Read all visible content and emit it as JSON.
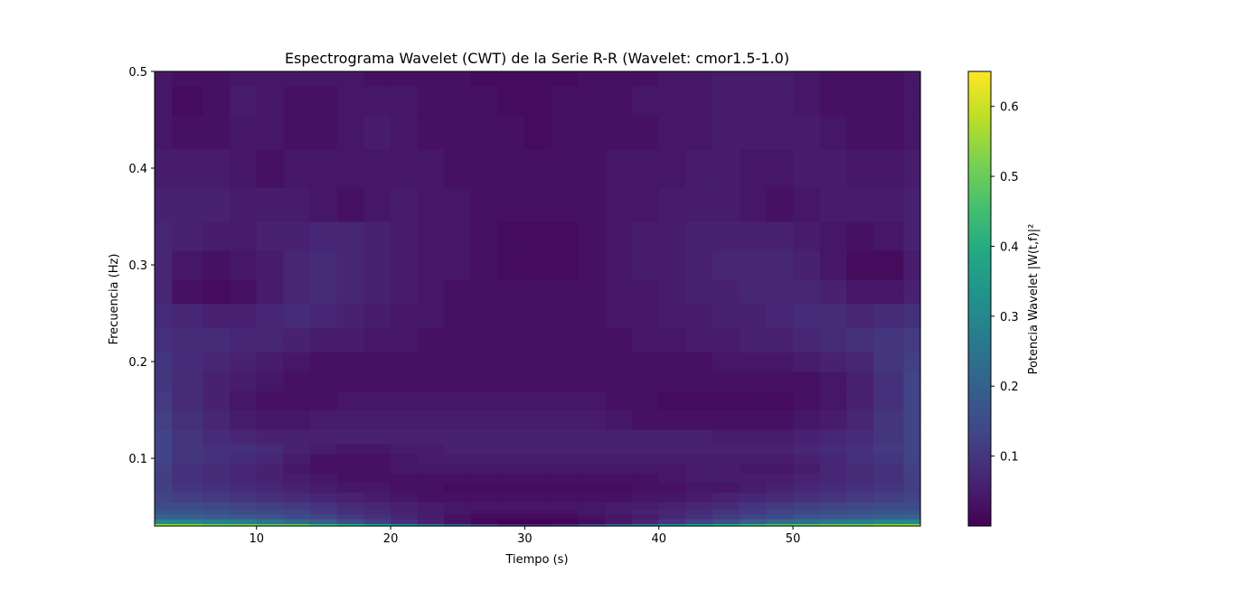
{
  "chart_data": {
    "type": "heatmap",
    "title": "Espectrograma Wavelet (CWT) de la Serie R-R (Wavelet: cmor1.5-1.0)",
    "xlabel": "Tiempo (s)",
    "ylabel": "Frecuencia (Hz)",
    "colorbar_label": "Potencia Wavelet |W(t,f)|²",
    "colormap": "viridis",
    "xlim": [
      2.4,
      59.5
    ],
    "ylim": [
      0.03,
      0.5
    ],
    "x_ticks": [
      10,
      20,
      30,
      40,
      50
    ],
    "y_ticks": [
      0.1,
      0.2,
      0.3,
      0.4,
      0.5
    ],
    "color_range": [
      0.0,
      0.65
    ],
    "color_ticks": [
      0.1,
      0.2,
      0.3,
      0.4,
      0.5,
      0.6
    ],
    "grid": false,
    "power_map": {
      "x": [
        2.4,
        5,
        7,
        9,
        11,
        13,
        15,
        17,
        19,
        21,
        23,
        25,
        27,
        29,
        31,
        33,
        35,
        37,
        39,
        41,
        43,
        45,
        47,
        49,
        51,
        53,
        55,
        57,
        59.5
      ],
      "y": [
        0.03,
        0.035,
        0.04,
        0.045,
        0.05,
        0.06,
        0.07,
        0.08,
        0.09,
        0.1,
        0.11,
        0.12,
        0.14,
        0.16,
        0.18,
        0.2,
        0.22,
        0.25,
        0.27,
        0.3,
        0.33,
        0.36,
        0.4,
        0.44,
        0.47,
        0.5
      ],
      "values": [
        [
          0.55,
          0.55,
          0.52,
          0.52,
          0.5,
          0.5,
          0.45,
          0.42,
          0.38,
          0.33,
          0.28,
          0.22,
          0.16,
          0.11,
          0.09,
          0.12,
          0.17,
          0.22,
          0.28,
          0.33,
          0.38,
          0.42,
          0.45,
          0.48,
          0.5,
          0.52,
          0.52,
          0.55,
          0.55
        ],
        [
          0.3,
          0.29,
          0.28,
          0.27,
          0.25,
          0.22,
          0.19,
          0.15,
          0.12,
          0.09,
          0.06,
          0.03,
          0.01,
          0.0,
          0.0,
          0.01,
          0.02,
          0.04,
          0.07,
          0.1,
          0.13,
          0.16,
          0.19,
          0.22,
          0.24,
          0.26,
          0.27,
          0.29,
          0.3
        ],
        [
          0.2,
          0.2,
          0.19,
          0.18,
          0.17,
          0.15,
          0.13,
          0.11,
          0.09,
          0.07,
          0.05,
          0.03,
          0.02,
          0.02,
          0.02,
          0.02,
          0.03,
          0.04,
          0.05,
          0.07,
          0.09,
          0.11,
          0.13,
          0.15,
          0.17,
          0.18,
          0.19,
          0.2,
          0.2
        ],
        [
          0.17,
          0.17,
          0.16,
          0.15,
          0.14,
          0.13,
          0.11,
          0.09,
          0.08,
          0.06,
          0.05,
          0.04,
          0.03,
          0.03,
          0.03,
          0.03,
          0.04,
          0.05,
          0.06,
          0.07,
          0.08,
          0.1,
          0.11,
          0.13,
          0.14,
          0.15,
          0.16,
          0.17,
          0.17
        ],
        [
          0.15,
          0.15,
          0.14,
          0.13,
          0.12,
          0.11,
          0.1,
          0.08,
          0.07,
          0.06,
          0.05,
          0.04,
          0.04,
          0.04,
          0.04,
          0.04,
          0.04,
          0.05,
          0.05,
          0.06,
          0.07,
          0.08,
          0.1,
          0.11,
          0.12,
          0.13,
          0.14,
          0.15,
          0.15
        ],
        [
          0.13,
          0.12,
          0.11,
          0.1,
          0.09,
          0.08,
          0.07,
          0.06,
          0.05,
          0.04,
          0.03,
          0.03,
          0.03,
          0.03,
          0.03,
          0.03,
          0.03,
          0.03,
          0.04,
          0.04,
          0.05,
          0.06,
          0.07,
          0.08,
          0.09,
          0.1,
          0.11,
          0.12,
          0.13
        ],
        [
          0.12,
          0.1,
          0.09,
          0.08,
          0.07,
          0.06,
          0.05,
          0.04,
          0.04,
          0.03,
          0.03,
          0.02,
          0.02,
          0.02,
          0.02,
          0.02,
          0.02,
          0.02,
          0.03,
          0.03,
          0.04,
          0.04,
          0.05,
          0.06,
          0.07,
          0.08,
          0.09,
          0.1,
          0.12
        ],
        [
          0.12,
          0.09,
          0.08,
          0.07,
          0.06,
          0.05,
          0.04,
          0.03,
          0.03,
          0.03,
          0.03,
          0.03,
          0.03,
          0.03,
          0.03,
          0.03,
          0.03,
          0.03,
          0.03,
          0.04,
          0.05,
          0.05,
          0.05,
          0.05,
          0.06,
          0.07,
          0.08,
          0.09,
          0.12
        ],
        [
          0.12,
          0.09,
          0.08,
          0.07,
          0.06,
          0.04,
          0.03,
          0.03,
          0.03,
          0.04,
          0.04,
          0.04,
          0.04,
          0.04,
          0.04,
          0.04,
          0.04,
          0.04,
          0.04,
          0.04,
          0.05,
          0.05,
          0.04,
          0.04,
          0.05,
          0.07,
          0.08,
          0.09,
          0.12
        ],
        [
          0.13,
          0.1,
          0.09,
          0.08,
          0.07,
          0.05,
          0.03,
          0.03,
          0.03,
          0.04,
          0.05,
          0.05,
          0.05,
          0.05,
          0.05,
          0.05,
          0.05,
          0.05,
          0.05,
          0.05,
          0.05,
          0.05,
          0.05,
          0.05,
          0.06,
          0.07,
          0.09,
          0.1,
          0.13
        ],
        [
          0.13,
          0.1,
          0.09,
          0.09,
          0.08,
          0.06,
          0.05,
          0.04,
          0.04,
          0.05,
          0.05,
          0.06,
          0.06,
          0.06,
          0.06,
          0.06,
          0.06,
          0.06,
          0.06,
          0.06,
          0.06,
          0.06,
          0.06,
          0.06,
          0.07,
          0.08,
          0.09,
          0.11,
          0.13
        ],
        [
          0.13,
          0.1,
          0.08,
          0.07,
          0.06,
          0.06,
          0.06,
          0.06,
          0.06,
          0.06,
          0.06,
          0.06,
          0.06,
          0.06,
          0.06,
          0.06,
          0.06,
          0.06,
          0.06,
          0.06,
          0.06,
          0.05,
          0.05,
          0.05,
          0.06,
          0.07,
          0.08,
          0.1,
          0.13
        ],
        [
          0.12,
          0.09,
          0.07,
          0.05,
          0.04,
          0.04,
          0.05,
          0.05,
          0.05,
          0.05,
          0.05,
          0.05,
          0.05,
          0.05,
          0.05,
          0.05,
          0.05,
          0.04,
          0.03,
          0.03,
          0.03,
          0.03,
          0.03,
          0.03,
          0.04,
          0.05,
          0.07,
          0.1,
          0.13
        ],
        [
          0.11,
          0.08,
          0.06,
          0.04,
          0.03,
          0.03,
          0.03,
          0.04,
          0.04,
          0.04,
          0.04,
          0.04,
          0.04,
          0.04,
          0.04,
          0.04,
          0.04,
          0.03,
          0.03,
          0.02,
          0.02,
          0.02,
          0.02,
          0.02,
          0.03,
          0.04,
          0.06,
          0.09,
          0.13
        ],
        [
          0.1,
          0.08,
          0.06,
          0.05,
          0.04,
          0.03,
          0.03,
          0.03,
          0.03,
          0.03,
          0.03,
          0.03,
          0.03,
          0.03,
          0.03,
          0.03,
          0.03,
          0.03,
          0.03,
          0.03,
          0.03,
          0.03,
          0.03,
          0.03,
          0.03,
          0.04,
          0.06,
          0.09,
          0.13
        ],
        [
          0.1,
          0.08,
          0.07,
          0.06,
          0.05,
          0.04,
          0.03,
          0.03,
          0.03,
          0.03,
          0.03,
          0.03,
          0.03,
          0.03,
          0.03,
          0.03,
          0.03,
          0.03,
          0.03,
          0.03,
          0.03,
          0.04,
          0.04,
          0.04,
          0.05,
          0.06,
          0.07,
          0.1,
          0.12
        ],
        [
          0.09,
          0.08,
          0.08,
          0.07,
          0.07,
          0.06,
          0.05,
          0.05,
          0.04,
          0.04,
          0.03,
          0.03,
          0.03,
          0.03,
          0.03,
          0.03,
          0.03,
          0.03,
          0.04,
          0.04,
          0.05,
          0.05,
          0.06,
          0.06,
          0.07,
          0.08,
          0.09,
          0.1,
          0.11
        ],
        [
          0.08,
          0.07,
          0.06,
          0.06,
          0.07,
          0.08,
          0.07,
          0.06,
          0.05,
          0.04,
          0.04,
          0.03,
          0.03,
          0.03,
          0.03,
          0.03,
          0.03,
          0.04,
          0.04,
          0.05,
          0.05,
          0.06,
          0.06,
          0.07,
          0.08,
          0.08,
          0.07,
          0.08,
          0.09
        ],
        [
          0.07,
          0.03,
          0.02,
          0.03,
          0.05,
          0.07,
          0.08,
          0.07,
          0.06,
          0.05,
          0.04,
          0.03,
          0.03,
          0.03,
          0.03,
          0.03,
          0.03,
          0.04,
          0.04,
          0.05,
          0.06,
          0.06,
          0.07,
          0.07,
          0.07,
          0.06,
          0.04,
          0.04,
          0.06
        ],
        [
          0.07,
          0.04,
          0.03,
          0.04,
          0.05,
          0.07,
          0.08,
          0.07,
          0.06,
          0.05,
          0.04,
          0.04,
          0.03,
          0.02,
          0.02,
          0.02,
          0.03,
          0.04,
          0.05,
          0.05,
          0.06,
          0.07,
          0.07,
          0.07,
          0.06,
          0.04,
          0.02,
          0.02,
          0.05
        ],
        [
          0.07,
          0.06,
          0.05,
          0.05,
          0.06,
          0.06,
          0.07,
          0.07,
          0.06,
          0.05,
          0.04,
          0.04,
          0.03,
          0.02,
          0.02,
          0.02,
          0.03,
          0.04,
          0.05,
          0.05,
          0.06,
          0.06,
          0.06,
          0.06,
          0.05,
          0.04,
          0.03,
          0.04,
          0.06
        ],
        [
          0.06,
          0.06,
          0.06,
          0.05,
          0.05,
          0.05,
          0.04,
          0.03,
          0.04,
          0.05,
          0.04,
          0.04,
          0.03,
          0.03,
          0.03,
          0.03,
          0.03,
          0.04,
          0.04,
          0.05,
          0.05,
          0.05,
          0.04,
          0.03,
          0.04,
          0.05,
          0.05,
          0.05,
          0.06
        ],
        [
          0.05,
          0.05,
          0.05,
          0.04,
          0.03,
          0.04,
          0.04,
          0.04,
          0.04,
          0.04,
          0.04,
          0.03,
          0.03,
          0.03,
          0.03,
          0.03,
          0.03,
          0.04,
          0.04,
          0.04,
          0.05,
          0.05,
          0.04,
          0.04,
          0.05,
          0.05,
          0.04,
          0.04,
          0.05
        ],
        [
          0.04,
          0.03,
          0.03,
          0.04,
          0.04,
          0.03,
          0.03,
          0.04,
          0.05,
          0.04,
          0.03,
          0.03,
          0.03,
          0.03,
          0.02,
          0.03,
          0.03,
          0.03,
          0.03,
          0.04,
          0.04,
          0.05,
          0.05,
          0.05,
          0.05,
          0.04,
          0.03,
          0.03,
          0.04
        ],
        [
          0.04,
          0.02,
          0.03,
          0.05,
          0.04,
          0.03,
          0.03,
          0.04,
          0.04,
          0.04,
          0.03,
          0.03,
          0.03,
          0.02,
          0.02,
          0.03,
          0.03,
          0.03,
          0.04,
          0.04,
          0.04,
          0.05,
          0.05,
          0.05,
          0.04,
          0.03,
          0.03,
          0.03,
          0.04
        ],
        [
          0.04,
          0.03,
          0.03,
          0.04,
          0.04,
          0.04,
          0.04,
          0.04,
          0.03,
          0.03,
          0.03,
          0.03,
          0.02,
          0.02,
          0.02,
          0.02,
          0.03,
          0.03,
          0.03,
          0.04,
          0.04,
          0.05,
          0.05,
          0.05,
          0.04,
          0.03,
          0.03,
          0.03,
          0.04
        ]
      ]
    }
  }
}
